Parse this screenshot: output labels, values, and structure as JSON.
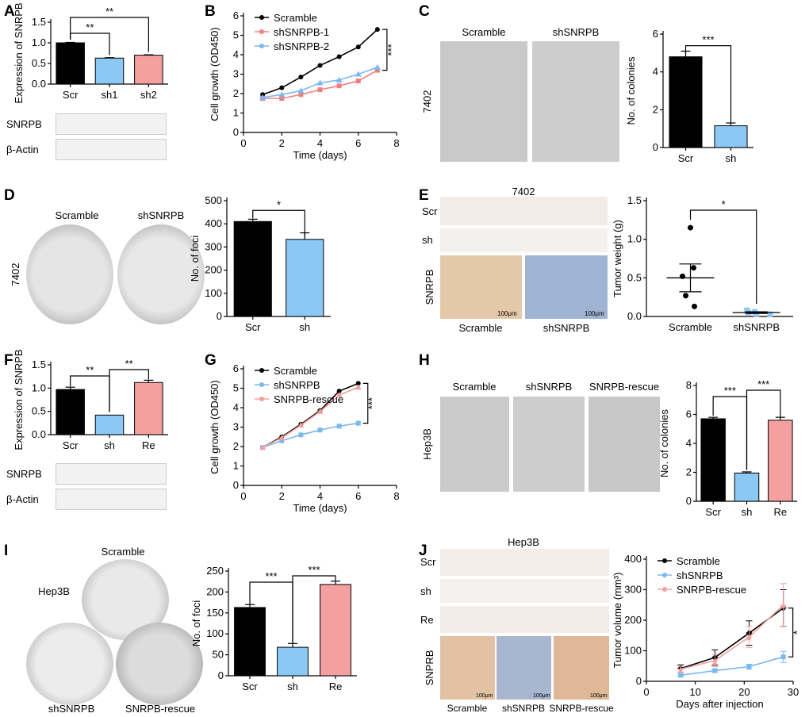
{
  "colors": {
    "scr": "#000000",
    "sh": "#8cc8f4",
    "re": "#f4a0a0",
    "line_scr": "#000000",
    "line_sh1": "#f08080",
    "line_sh2": "#7ab8f0",
    "line_re": "#f4a0a0"
  },
  "panels": {
    "A": "A",
    "B": "B",
    "C": "C",
    "D": "D",
    "E": "E",
    "F": "F",
    "G": "G",
    "H": "H",
    "I": "I",
    "J": "J"
  },
  "blot_labels": {
    "snrpb": "SNRPB",
    "actin": "β-Actin"
  },
  "line_7402": "7402",
  "line_hep3b": "Hep3B",
  "C_images": {
    "scramble": "Scramble",
    "sh": "shSNRPB"
  },
  "D_images": {
    "scramble": "Scramble",
    "sh": "shSNRPB"
  },
  "E_images": {
    "title": "7402",
    "scr": "Scr",
    "sh": "sh",
    "snrpb": "SNRPB",
    "scramble": "Scramble",
    "shsnrpb": "shSNRPB",
    "scale1": "100μm",
    "scale2": "100μm"
  },
  "H_images": {
    "scramble": "Scramble",
    "sh": "shSNRPB",
    "re": "SNRPB-rescue"
  },
  "I_images": {
    "scramble": "Scramble",
    "sh": "shSNRPB",
    "re": "SNRPB-rescue"
  },
  "J_images": {
    "title": "Hep3B",
    "scr": "Scr",
    "sh": "sh",
    "re": "Re",
    "snrpb": "SNPRB",
    "scramble": "Scramble",
    "shsnrpb": "shSNRPB",
    "rescue": "SNRPB-rescue",
    "scale1": "100μm",
    "scale2": "100μm",
    "scale3": "100μm"
  },
  "chart_data": [
    {
      "id": "A",
      "type": "bar",
      "categories": [
        "Scr",
        "sh1",
        "sh2"
      ],
      "values": [
        1.0,
        0.63,
        0.7
      ],
      "errors": [
        0.01,
        0.01,
        0.01
      ],
      "ylabel": "Expression of SNRPB",
      "ylim": [
        0,
        1.5
      ],
      "yticks": [
        "0.0",
        "0.5",
        "1.0",
        "1.5"
      ],
      "sig": [
        {
          "from": 0,
          "to": 1,
          "label": "**"
        },
        {
          "from": 0,
          "to": 2,
          "label": "**"
        }
      ]
    },
    {
      "id": "B",
      "type": "line",
      "xlabel": "Time (days)",
      "ylabel": "Cell growth (OD450)",
      "xlim": [
        0,
        8
      ],
      "ylim": [
        0,
        6
      ],
      "xticks": [
        "0",
        "2",
        "4",
        "6",
        "8"
      ],
      "yticks": [
        "0",
        "1",
        "2",
        "3",
        "4",
        "5",
        "6"
      ],
      "series": [
        {
          "name": "Scramble",
          "x": [
            1,
            2,
            3,
            4,
            5,
            6,
            7
          ],
          "values": [
            1.95,
            2.3,
            2.85,
            3.45,
            3.9,
            4.4,
            5.3
          ]
        },
        {
          "name": "shSNRPB-1",
          "x": [
            1,
            2,
            3,
            4,
            5,
            6,
            7
          ],
          "values": [
            1.75,
            1.75,
            1.95,
            2.2,
            2.4,
            2.65,
            3.2
          ]
        },
        {
          "name": "shSNRPB-2",
          "x": [
            1,
            2,
            3,
            4,
            5,
            6,
            7
          ],
          "values": [
            1.8,
            1.95,
            2.15,
            2.55,
            2.7,
            3.0,
            3.35
          ]
        }
      ],
      "sig": "***"
    },
    {
      "id": "C",
      "type": "bar",
      "categories": [
        "Scr",
        "sh"
      ],
      "values": [
        4.8,
        1.15
      ],
      "errors": [
        0.3,
        0.15
      ],
      "ylabel": "No. of colonies",
      "ylim": [
        0,
        6
      ],
      "yticks": [
        "0",
        "2",
        "4",
        "6"
      ],
      "sig": [
        {
          "from": 0,
          "to": 1,
          "label": "***"
        }
      ]
    },
    {
      "id": "D",
      "type": "bar",
      "categories": [
        "Scr",
        "sh"
      ],
      "values": [
        410,
        333
      ],
      "errors": [
        10,
        28
      ],
      "ylabel": "No. of foci",
      "ylim": [
        0,
        500
      ],
      "yticks": [
        "0",
        "100",
        "200",
        "300",
        "400",
        "500"
      ],
      "sig": [
        {
          "from": 0,
          "to": 1,
          "label": "*"
        }
      ]
    },
    {
      "id": "E",
      "type": "scatter",
      "categories": [
        "Scramble",
        "shSNRPB"
      ],
      "points": [
        [
          1.15,
          0.63,
          0.52,
          0.27,
          0.13
        ],
        [
          0.08,
          0.06,
          0.05,
          0.03,
          0.03
        ]
      ],
      "means": [
        0.5,
        0.05
      ],
      "sem": [
        0.18,
        0.01
      ],
      "ylabel": "Tumor weight (g)",
      "ylim": [
        0,
        1.5
      ],
      "yticks": [
        "0.0",
        "0.5",
        "1.0",
        "1.5"
      ],
      "sig": [
        {
          "from": 0,
          "to": 1,
          "label": "*"
        }
      ]
    },
    {
      "id": "F",
      "type": "bar",
      "categories": [
        "Scr",
        "sh",
        "Re"
      ],
      "values": [
        0.97,
        0.42,
        1.12
      ],
      "errors": [
        0.05,
        0.0,
        0.05
      ],
      "ylabel": "Expression of SNRPB",
      "ylim": [
        0,
        1.5
      ],
      "yticks": [
        "0.0",
        "0.5",
        "1.0",
        "1.5"
      ],
      "sig": [
        {
          "from": 0,
          "to": 1,
          "label": "**"
        },
        {
          "from": 1,
          "to": 2,
          "label": "**"
        }
      ]
    },
    {
      "id": "G",
      "type": "line",
      "xlabel": "Time (days)",
      "ylabel": "Cell growth (OD450)",
      "xlim": [
        0,
        8
      ],
      "ylim": [
        0,
        6
      ],
      "xticks": [
        "0",
        "2",
        "4",
        "6",
        "8"
      ],
      "yticks": [
        "0",
        "1",
        "2",
        "3",
        "4",
        "5",
        "6"
      ],
      "series": [
        {
          "name": "Scramble",
          "x": [
            1,
            2,
            3,
            4,
            5,
            6
          ],
          "values": [
            1.95,
            2.5,
            3.15,
            3.85,
            4.85,
            5.25
          ]
        },
        {
          "name": "shSNRPB",
          "x": [
            1,
            2,
            3,
            4,
            5,
            6
          ],
          "values": [
            1.95,
            2.3,
            2.6,
            2.85,
            3.05,
            3.2
          ]
        },
        {
          "name": "SNRPB-rescue",
          "x": [
            1,
            2,
            3,
            4,
            5,
            6
          ],
          "values": [
            1.95,
            2.45,
            3.1,
            3.8,
            4.65,
            5.05
          ]
        }
      ],
      "sig": "***"
    },
    {
      "id": "H",
      "type": "bar",
      "categories": [
        "Scr",
        "sh",
        "Re"
      ],
      "values": [
        5.7,
        1.95,
        5.6
      ],
      "errors": [
        0.1,
        0.08,
        0.2
      ],
      "ylabel": "No. of colonies",
      "ylim": [
        0,
        8
      ],
      "yticks": [
        "0",
        "2",
        "4",
        "6",
        "8"
      ],
      "sig": [
        {
          "from": 0,
          "to": 1,
          "label": "***"
        },
        {
          "from": 1,
          "to": 2,
          "label": "***"
        }
      ]
    },
    {
      "id": "I",
      "type": "bar",
      "categories": [
        "Scr",
        "sh",
        "Re"
      ],
      "values": [
        163,
        68,
        218
      ],
      "errors": [
        7,
        9,
        8
      ],
      "ylabel": "No. of foci",
      "ylim": [
        0,
        250
      ],
      "yticks": [
        "0",
        "50",
        "100",
        "150",
        "200",
        "250"
      ],
      "sig": [
        {
          "from": 0,
          "to": 1,
          "label": "***"
        },
        {
          "from": 1,
          "to": 2,
          "label": "***"
        }
      ]
    },
    {
      "id": "J",
      "type": "line",
      "xlabel": "Days after injection",
      "ylabel": "Tumor volume (mm³)",
      "xlim": [
        0,
        30
      ],
      "ylim": [
        0,
        400
      ],
      "xticks": [
        "0",
        "10",
        "20",
        "30"
      ],
      "yticks": [
        "0",
        "100",
        "200",
        "300",
        "400"
      ],
      "series": [
        {
          "name": "Scramble",
          "x": [
            7,
            14,
            21,
            28
          ],
          "values": [
            42,
            78,
            158,
            240
          ],
          "errors": [
            12,
            25,
            40,
            60
          ]
        },
        {
          "name": "shSNRPB",
          "x": [
            7,
            14,
            21,
            28
          ],
          "values": [
            20,
            35,
            48,
            80
          ],
          "errors": [
            4,
            5,
            8,
            18
          ]
        },
        {
          "name": "SNRPB-rescue",
          "x": [
            7,
            14,
            21,
            28
          ],
          "values": [
            40,
            68,
            145,
            250
          ],
          "errors": [
            10,
            20,
            35,
            70
          ]
        }
      ],
      "sig": "*"
    }
  ]
}
